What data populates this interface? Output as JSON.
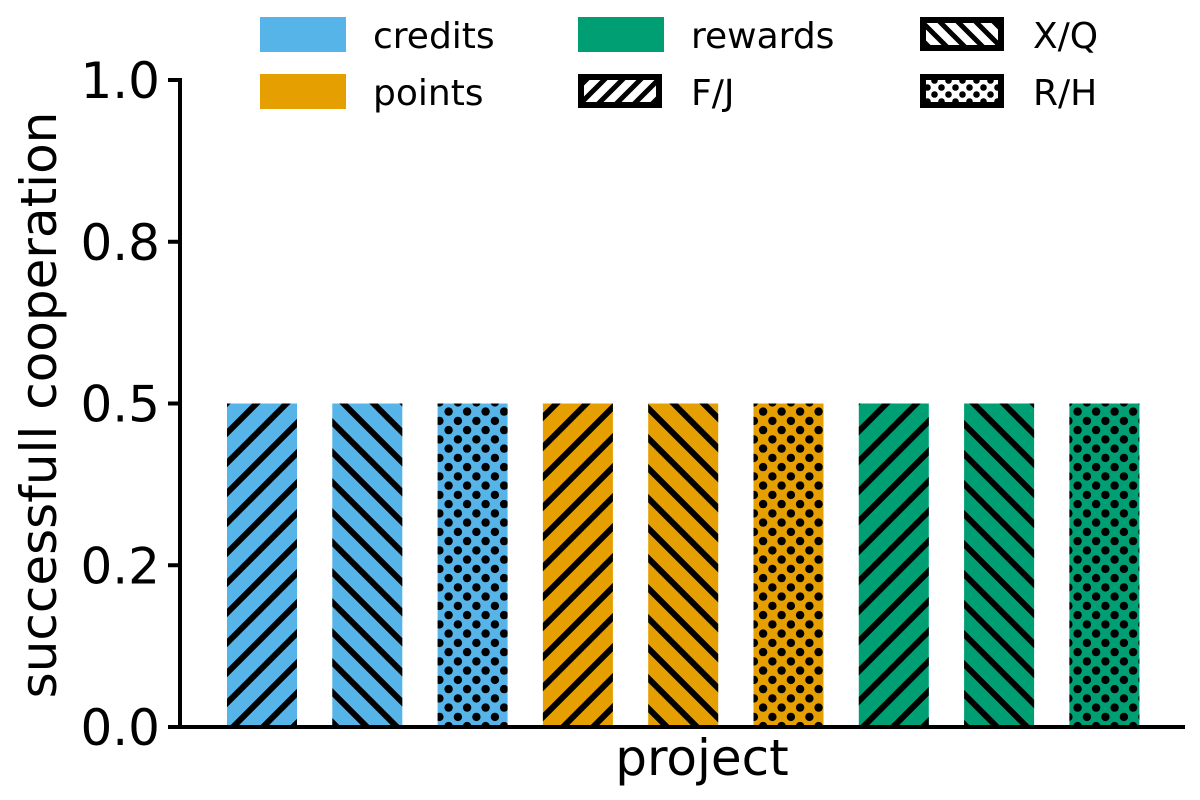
{
  "chart_data": {
    "type": "bar",
    "title": "",
    "xlabel": "project",
    "ylabel": "successfull cooperation",
    "ylim": [
      0,
      1.0
    ],
    "yticks": [
      {
        "value": 0.0,
        "label": "0.0"
      },
      {
        "value": 0.25,
        "label": "0.2"
      },
      {
        "value": 0.5,
        "label": "0.5"
      },
      {
        "value": 0.75,
        "label": "0.8"
      },
      {
        "value": 1.0,
        "label": "1.0"
      }
    ],
    "bars": [
      {
        "group": "credits",
        "pattern": "F/J",
        "value": 0.5
      },
      {
        "group": "credits",
        "pattern": "X/Q",
        "value": 0.5
      },
      {
        "group": "credits",
        "pattern": "R/H",
        "value": 0.5
      },
      {
        "group": "points",
        "pattern": "F/J",
        "value": 0.5
      },
      {
        "group": "points",
        "pattern": "X/Q",
        "value": 0.5
      },
      {
        "group": "points",
        "pattern": "R/H",
        "value": 0.5
      },
      {
        "group": "rewards",
        "pattern": "F/J",
        "value": 0.5
      },
      {
        "group": "rewards",
        "pattern": "X/Q",
        "value": 0.5
      },
      {
        "group": "rewards",
        "pattern": "R/H",
        "value": 0.5
      }
    ],
    "legend": {
      "placement": "top",
      "color_entries": [
        {
          "label": "credits",
          "color": "#56B4E9"
        },
        {
          "label": "points",
          "color": "#E69F00"
        },
        {
          "label": "rewards",
          "color": "#009E73"
        }
      ],
      "pattern_entries": [
        {
          "label": "F/J",
          "pattern": "diag-up"
        },
        {
          "label": "X/Q",
          "pattern": "diag-down"
        },
        {
          "label": "R/H",
          "pattern": "dots"
        }
      ]
    }
  }
}
